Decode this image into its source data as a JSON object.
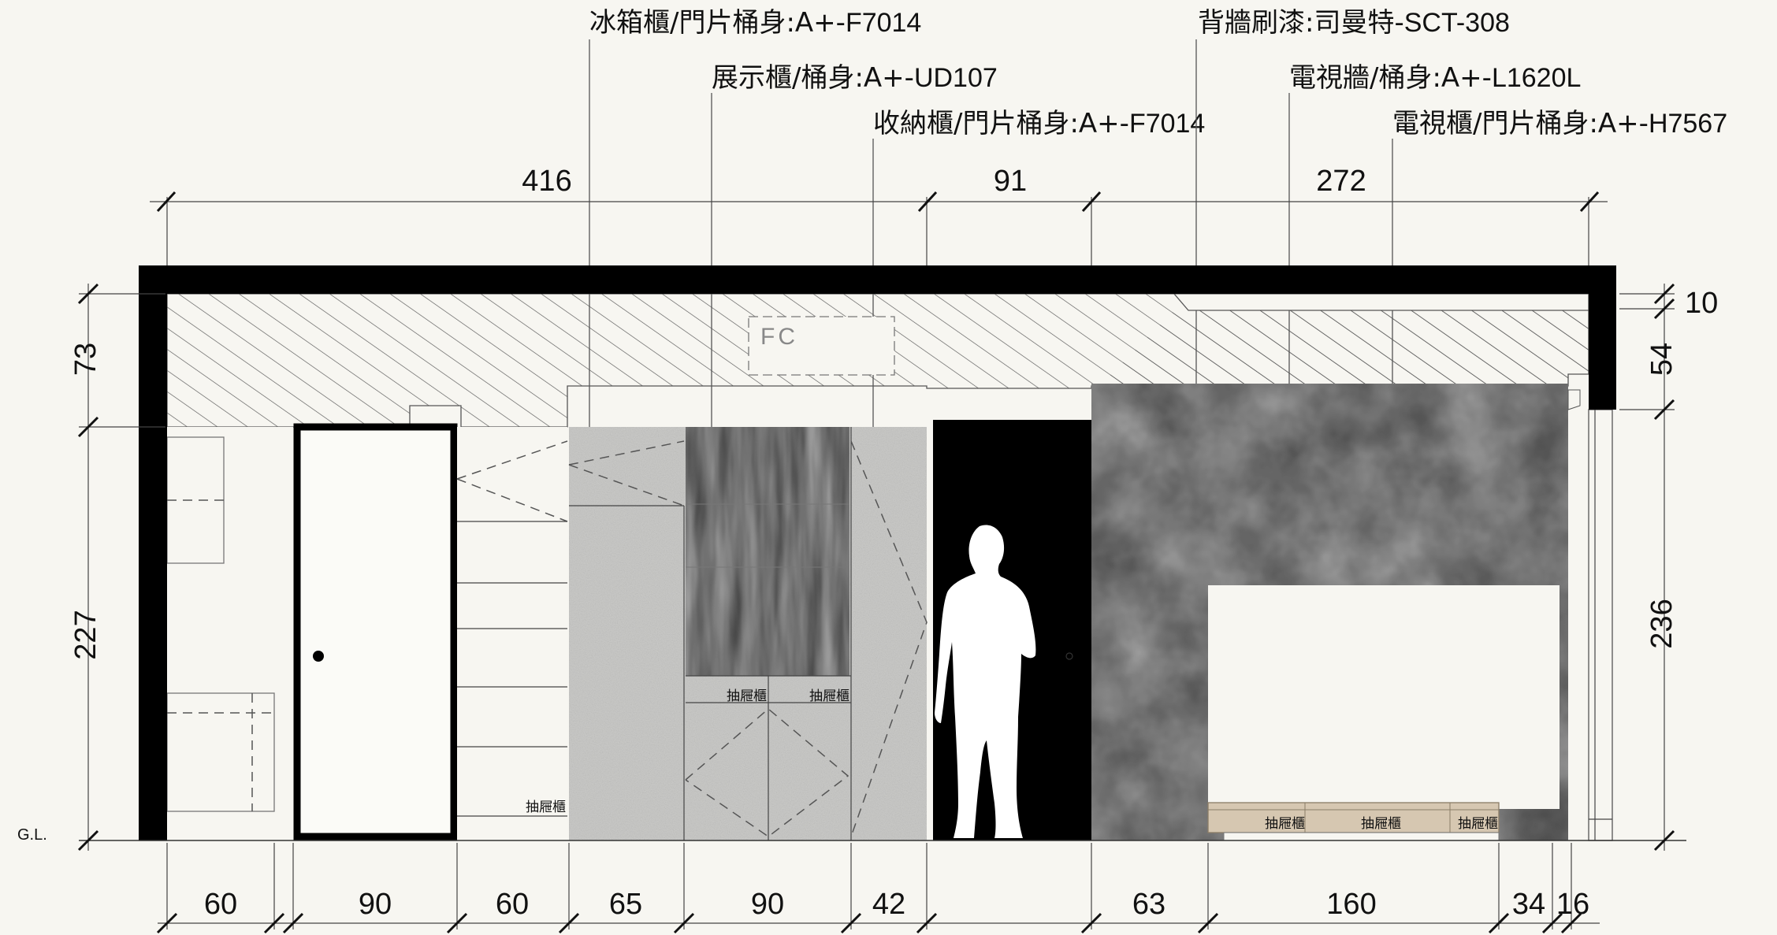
{
  "callouts": [
    {
      "main": "冰箱櫃/門片桶身:A+-",
      "code": "F7014"
    },
    {
      "main": "展示櫃/桶身:A+-",
      "code": "UD107"
    },
    {
      "main": "收納櫃/門片桶身:A+-",
      "code": "F7014"
    },
    {
      "main": "背牆刷漆:司曼特-",
      "code": "SCT-308"
    },
    {
      "main": "電視牆/桶身:A+-",
      "code": "L1620L"
    },
    {
      "main": "電視櫃/門片桶身:A+-",
      "code": "H7567"
    }
  ],
  "dimensions": {
    "top": [
      "416",
      "91",
      "272"
    ],
    "left": [
      "73",
      "227"
    ],
    "right": [
      "10",
      "54",
      "236"
    ],
    "bottom": [
      "60",
      "90",
      "60",
      "65",
      "90",
      "42",
      "63",
      "160",
      "34",
      "16"
    ]
  },
  "labels": {
    "fc": "FC",
    "ground": "G.L.",
    "drawer": "抽屜櫃"
  },
  "colors": {
    "wall": "#000000",
    "background": "#f7f6f1",
    "stone": "#c9c9c9",
    "dark_wall": "#3b3b3b",
    "wood": "#d8c9b4"
  }
}
